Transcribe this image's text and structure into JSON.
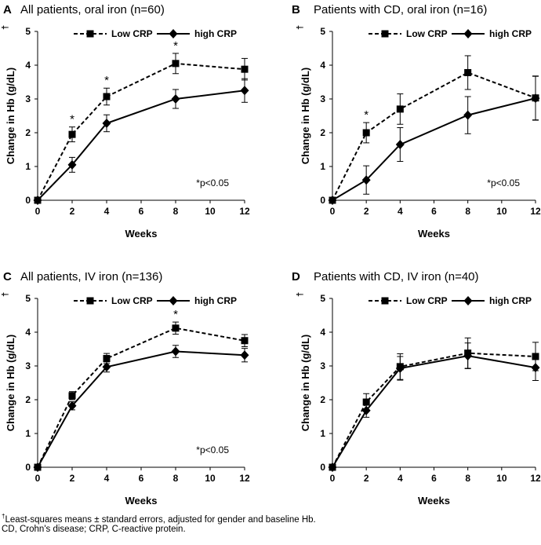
{
  "common": {
    "xlabel": "Weeks",
    "ylabel": "Change in Hb (g/dL)",
    "ylabel_mark": "†",
    "xticks": [
      "0",
      "2",
      "4",
      "6",
      "8",
      "10",
      "12"
    ],
    "yticks": [
      "0",
      "1",
      "2",
      "3",
      "4",
      "5"
    ],
    "legend": {
      "low": "Low CRP",
      "high": "high CRP"
    }
  },
  "footnotes": {
    "line1_mark": "†",
    "line1": "Least-squares means ± standard errors, adjusted for gender and baseline Hb.",
    "line2": "CD, Crohn's disease; CRP, C-reactive protein."
  },
  "chart_data": [
    {
      "type": "line",
      "panel_letter": "A",
      "title": "All patients, oral iron (n=60)",
      "x": [
        0,
        2,
        4,
        8,
        12
      ],
      "xlim": [
        0,
        12
      ],
      "ylim": [
        0,
        5
      ],
      "series": [
        {
          "name": "Low CRP",
          "marker": "square",
          "linestyle": "dashed",
          "values": [
            0,
            1.95,
            3.07,
            4.05,
            3.88
          ],
          "errors": [
            0,
            0.22,
            0.25,
            0.3,
            0.32
          ]
        },
        {
          "name": "high CRP",
          "marker": "diamond",
          "linestyle": "solid",
          "values": [
            0,
            1.05,
            2.28,
            3.0,
            3.25
          ],
          "errors": [
            0,
            0.22,
            0.25,
            0.28,
            0.35
          ]
        }
      ],
      "significant_x": [
        2,
        4,
        8
      ],
      "significance_marker": "*",
      "annotation": "*p<0.05"
    },
    {
      "type": "line",
      "panel_letter": "B",
      "title": "Patients with CD, oral iron (n=16)",
      "x": [
        0,
        2,
        4,
        8,
        12
      ],
      "xlim": [
        0,
        12
      ],
      "ylim": [
        0,
        5
      ],
      "series": [
        {
          "name": "Low CRP",
          "marker": "square",
          "linestyle": "dashed",
          "values": [
            0,
            2.0,
            2.7,
            3.78,
            3.03
          ],
          "errors": [
            0,
            0.3,
            0.45,
            0.5,
            0.65
          ]
        },
        {
          "name": "high CRP",
          "marker": "diamond",
          "linestyle": "solid",
          "values": [
            0,
            0.6,
            1.65,
            2.52,
            3.02
          ],
          "errors": [
            0,
            0.42,
            0.5,
            0.55,
            0.65
          ]
        }
      ],
      "significant_x": [
        2
      ],
      "significance_marker": "*",
      "annotation": "*p<0.05"
    },
    {
      "type": "line",
      "panel_letter": "C",
      "title": "All patients, IV iron (n=136)",
      "x": [
        0,
        2,
        4,
        8,
        12
      ],
      "xlim": [
        0,
        12
      ],
      "ylim": [
        0,
        5
      ],
      "series": [
        {
          "name": "Low CRP",
          "marker": "square",
          "linestyle": "dashed",
          "values": [
            0,
            2.12,
            3.22,
            4.12,
            3.75
          ],
          "errors": [
            0,
            0.12,
            0.15,
            0.18,
            0.18
          ]
        },
        {
          "name": "high CRP",
          "marker": "diamond",
          "linestyle": "solid",
          "values": [
            0,
            1.82,
            2.97,
            3.43,
            3.32
          ],
          "errors": [
            0,
            0.12,
            0.15,
            0.18,
            0.2
          ]
        }
      ],
      "significant_x": [
        8
      ],
      "significance_marker": "*",
      "annotation": "*p<0.05"
    },
    {
      "type": "line",
      "panel_letter": "D",
      "title": "Patients with CD, IV iron (n=40)",
      "x": [
        0,
        2,
        4,
        8,
        12
      ],
      "xlim": [
        0,
        12
      ],
      "ylim": [
        0,
        5
      ],
      "series": [
        {
          "name": "Low CRP",
          "marker": "square",
          "linestyle": "dashed",
          "values": [
            0,
            1.93,
            2.98,
            3.38,
            3.28
          ],
          "errors": [
            0,
            0.25,
            0.38,
            0.45,
            0.42
          ]
        },
        {
          "name": "high CRP",
          "marker": "diamond",
          "linestyle": "solid",
          "values": [
            0,
            1.68,
            2.93,
            3.3,
            2.95
          ],
          "errors": [
            0,
            0.2,
            0.35,
            0.38,
            0.38
          ]
        }
      ],
      "significant_x": [],
      "significance_marker": "*",
      "annotation": ""
    }
  ]
}
